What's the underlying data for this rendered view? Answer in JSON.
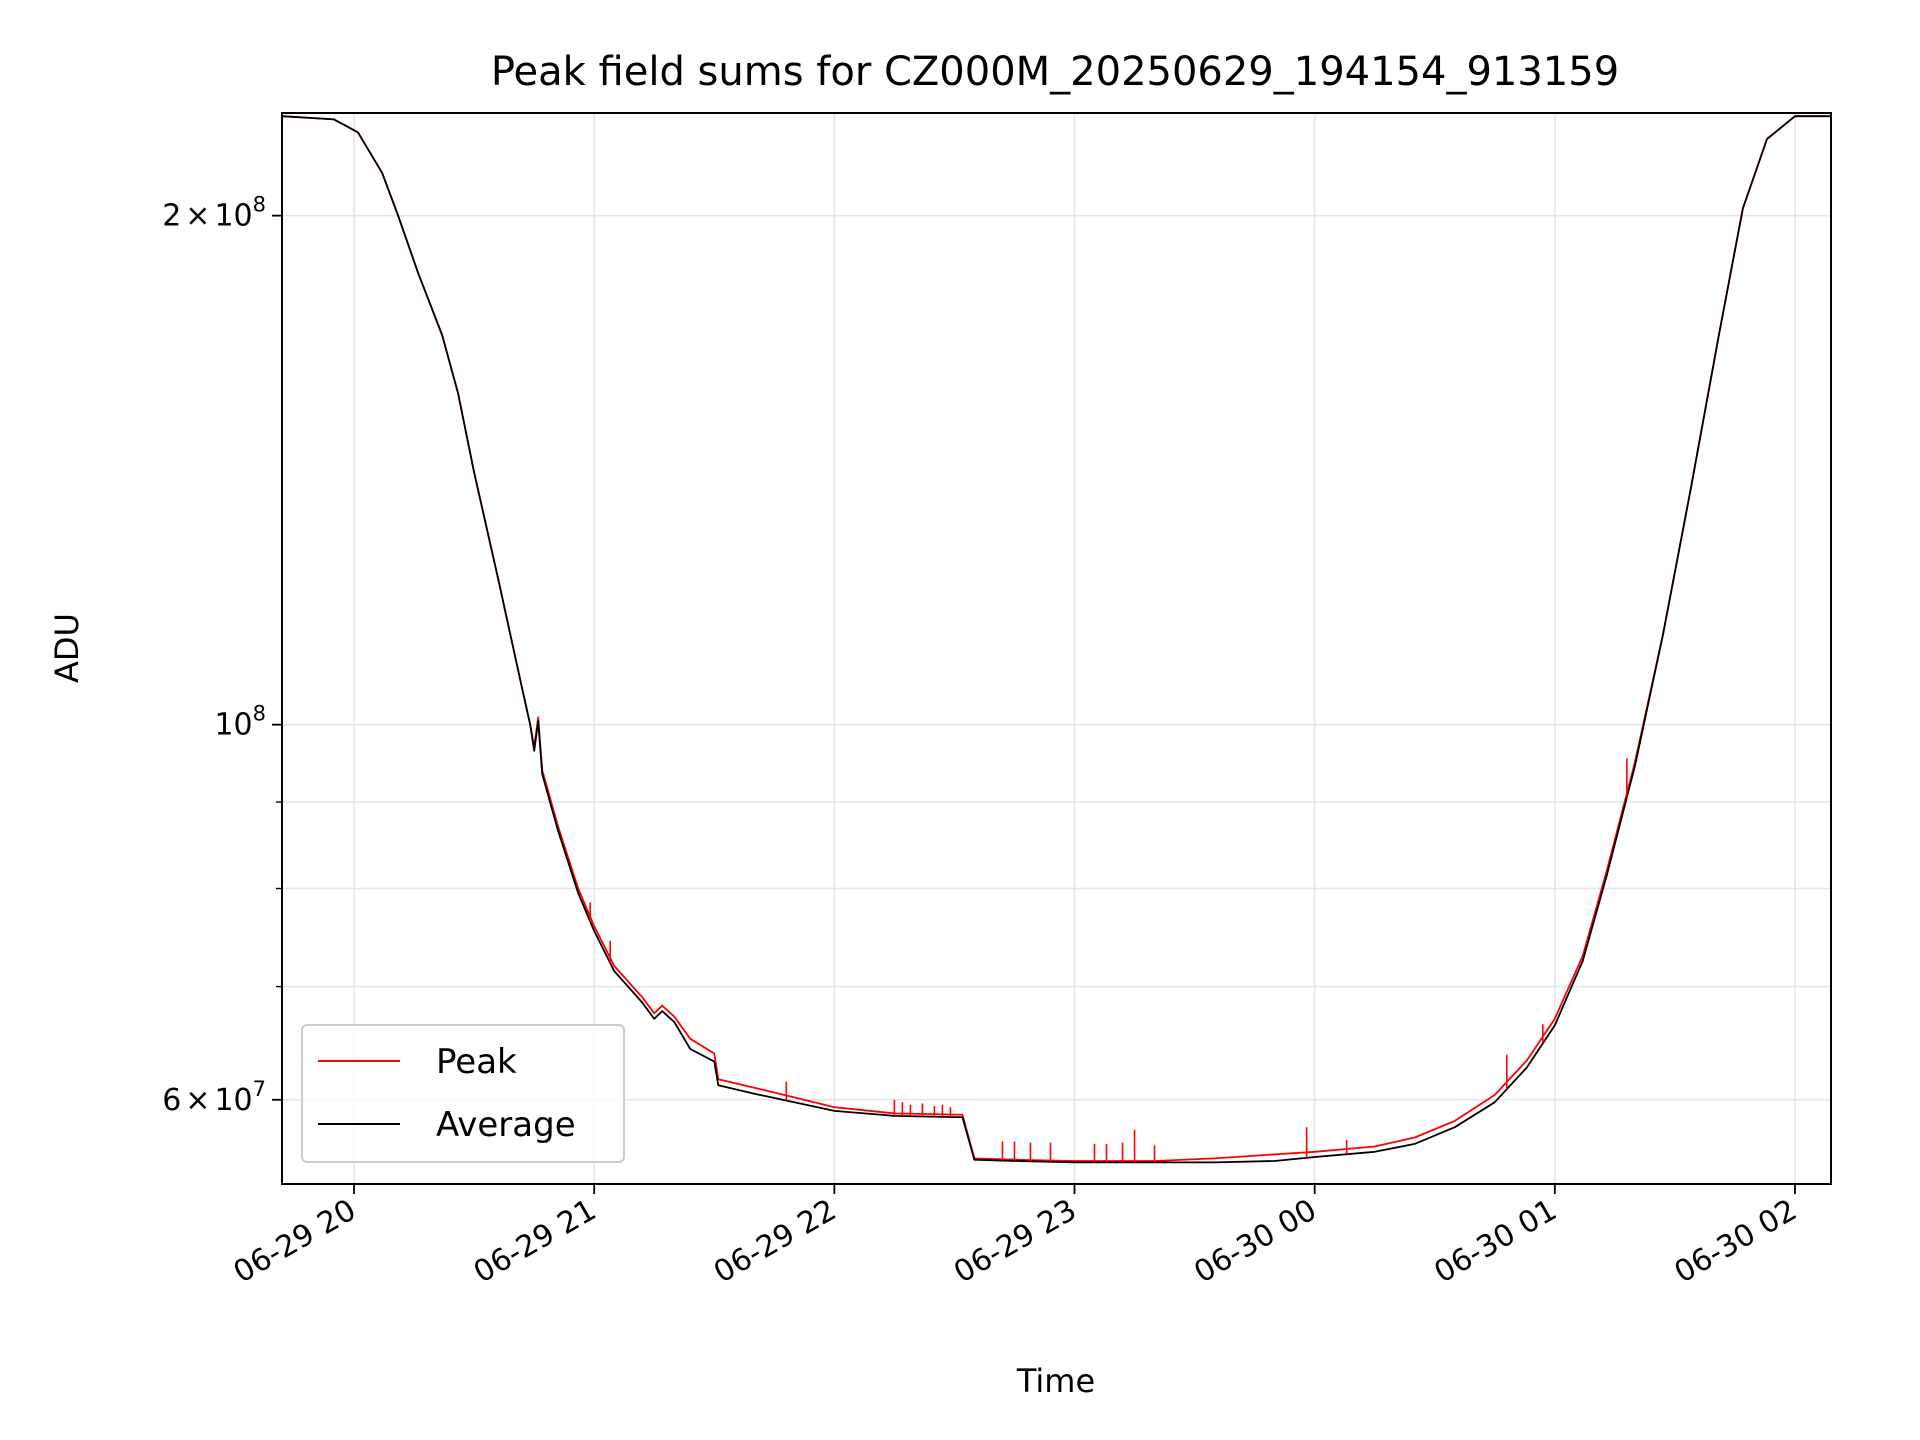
{
  "chart_data": {
    "type": "line",
    "title": "Peak field sums for CZ000M_20250629_194154_913159",
    "xlabel": "Time",
    "ylabel": "ADU",
    "yscale": "log",
    "xlim": [
      "2025-06-29 19:42",
      "2025-06-30 02:09"
    ],
    "ylim": [
      53500000,
      230000000
    ],
    "grid": true,
    "legend_position": "lower-left",
    "x_ticks": [
      {
        "value": "2025-06-29 20:00",
        "label": "06-29 20"
      },
      {
        "value": "2025-06-29 21:00",
        "label": "06-29 21"
      },
      {
        "value": "2025-06-29 22:00",
        "label": "06-29 22"
      },
      {
        "value": "2025-06-29 23:00",
        "label": "06-29 23"
      },
      {
        "value": "2025-06-30 00:00",
        "label": "06-30 00"
      },
      {
        "value": "2025-06-30 01:00",
        "label": "06-30 01"
      },
      {
        "value": "2025-06-30 02:00",
        "label": "06-30 02"
      }
    ],
    "y_major_ticks": [
      {
        "value": 60000000,
        "mant": "6",
        "exp": "7"
      },
      {
        "value": 100000000,
        "mant": "",
        "exp": "8"
      },
      {
        "value": 200000000,
        "mant": "2",
        "exp": "8"
      }
    ],
    "y_minor_ticks": [
      70000000,
      80000000,
      90000000
    ],
    "series": [
      {
        "name": "Peak",
        "color": "#ff0000",
        "points": [
          [
            "2025-06-29 19:42",
            229000000
          ],
          [
            "2025-06-29 19:55",
            228000000
          ],
          [
            "2025-06-29 20:01",
            224000000
          ],
          [
            "2025-06-29 20:07",
            212000000
          ],
          [
            "2025-06-29 20:11",
            200000000
          ],
          [
            "2025-06-29 20:16",
            185000000
          ],
          [
            "2025-06-29 20:22",
            170000000
          ],
          [
            "2025-06-29 20:26",
            157000000
          ],
          [
            "2025-06-29 20:30",
            141000000
          ],
          [
            "2025-06-29 20:36",
            122000000
          ],
          [
            "2025-06-29 20:42",
            105000000
          ],
          [
            "2025-06-29 20:44",
            100000000
          ],
          [
            "2025-06-29 20:45",
            97000000
          ],
          [
            "2025-06-29 20:46",
            101000000
          ],
          [
            "2025-06-29 20:47",
            94000000
          ],
          [
            "2025-06-29 20:51",
            87000000
          ],
          [
            "2025-06-29 20:56",
            80000000
          ],
          [
            "2025-06-29 21:00",
            76000000
          ],
          [
            "2025-06-29 21:05",
            72000000
          ],
          [
            "2025-06-29 21:12",
            69000000
          ],
          [
            "2025-06-29 21:15",
            67500000
          ],
          [
            "2025-06-29 21:17",
            68200000
          ],
          [
            "2025-06-29 21:20",
            67200000
          ],
          [
            "2025-06-29 21:24",
            65200000
          ],
          [
            "2025-06-29 21:30",
            63900000
          ],
          [
            "2025-06-29 21:31",
            61700000
          ],
          [
            "2025-06-29 21:40",
            61000000
          ],
          [
            "2025-06-29 21:50",
            60200000
          ],
          [
            "2025-06-29 22:00",
            59400000
          ],
          [
            "2025-06-29 22:15",
            58900000
          ],
          [
            "2025-06-29 22:30",
            58800000
          ],
          [
            "2025-06-29 22:32",
            58800000
          ],
          [
            "2025-06-29 22:35",
            55400000
          ],
          [
            "2025-06-29 22:45",
            55300000
          ],
          [
            "2025-06-29 23:00",
            55200000
          ],
          [
            "2025-06-29 23:20",
            55200000
          ],
          [
            "2025-06-29 23:35",
            55400000
          ],
          [
            "2025-06-29 23:50",
            55700000
          ],
          [
            "2025-06-30 00:00",
            55900000
          ],
          [
            "2025-06-30 00:15",
            56300000
          ],
          [
            "2025-06-30 00:25",
            57000000
          ],
          [
            "2025-06-30 00:35",
            58300000
          ],
          [
            "2025-06-30 00:45",
            60400000
          ],
          [
            "2025-06-30 00:53",
            63300000
          ],
          [
            "2025-06-30 01:00",
            67000000
          ],
          [
            "2025-06-30 01:07",
            73000000
          ],
          [
            "2025-06-30 01:13",
            82000000
          ],
          [
            "2025-06-30 01:20",
            95000000
          ],
          [
            "2025-06-30 01:27",
            113000000
          ],
          [
            "2025-06-30 01:34",
            138000000
          ],
          [
            "2025-06-30 01:41",
            170000000
          ],
          [
            "2025-06-30 01:47",
            202000000
          ],
          [
            "2025-06-30 01:53",
            222000000
          ],
          [
            "2025-06-30 02:00",
            229000000
          ],
          [
            "2025-06-30 02:09",
            229000000
          ]
        ]
      },
      {
        "name": "Average",
        "color": "#000000",
        "points": [
          [
            "2025-06-29 19:42",
            229000000
          ],
          [
            "2025-06-29 19:55",
            228000000
          ],
          [
            "2025-06-29 20:01",
            224000000
          ],
          [
            "2025-06-29 20:07",
            212000000
          ],
          [
            "2025-06-29 20:11",
            200000000
          ],
          [
            "2025-06-29 20:16",
            185000000
          ],
          [
            "2025-06-29 20:22",
            170000000
          ],
          [
            "2025-06-29 20:26",
            157000000
          ],
          [
            "2025-06-29 20:30",
            141000000
          ],
          [
            "2025-06-29 20:36",
            122000000
          ],
          [
            "2025-06-29 20:42",
            105000000
          ],
          [
            "2025-06-29 20:44",
            100000000
          ],
          [
            "2025-06-29 20:45",
            96500000
          ],
          [
            "2025-06-29 20:46",
            100500000
          ],
          [
            "2025-06-29 20:47",
            93500000
          ],
          [
            "2025-06-29 20:51",
            86500000
          ],
          [
            "2025-06-29 20:56",
            79500000
          ],
          [
            "2025-06-29 21:00",
            75500000
          ],
          [
            "2025-06-29 21:05",
            71500000
          ],
          [
            "2025-06-29 21:12",
            68500000
          ],
          [
            "2025-06-29 21:15",
            67000000
          ],
          [
            "2025-06-29 21:17",
            67700000
          ],
          [
            "2025-06-29 21:20",
            66700000
          ],
          [
            "2025-06-29 21:24",
            64300000
          ],
          [
            "2025-06-29 21:30",
            63200000
          ],
          [
            "2025-06-29 21:31",
            61200000
          ],
          [
            "2025-06-29 21:40",
            60500000
          ],
          [
            "2025-06-29 21:50",
            59800000
          ],
          [
            "2025-06-29 22:00",
            59100000
          ],
          [
            "2025-06-29 22:15",
            58700000
          ],
          [
            "2025-06-29 22:30",
            58600000
          ],
          [
            "2025-06-29 22:32",
            58600000
          ],
          [
            "2025-06-29 22:35",
            55300000
          ],
          [
            "2025-06-29 22:45",
            55200000
          ],
          [
            "2025-06-29 23:00",
            55100000
          ],
          [
            "2025-06-29 23:20",
            55100000
          ],
          [
            "2025-06-29 23:35",
            55100000
          ],
          [
            "2025-06-29 23:50",
            55200000
          ],
          [
            "2025-06-30 00:00",
            55500000
          ],
          [
            "2025-06-30 00:15",
            55900000
          ],
          [
            "2025-06-30 00:25",
            56500000
          ],
          [
            "2025-06-30 00:35",
            57800000
          ],
          [
            "2025-06-30 00:45",
            59800000
          ],
          [
            "2025-06-30 00:53",
            62700000
          ],
          [
            "2025-06-30 01:00",
            66400000
          ],
          [
            "2025-06-30 01:07",
            72500000
          ],
          [
            "2025-06-30 01:13",
            81500000
          ],
          [
            "2025-06-30 01:20",
            94500000
          ],
          [
            "2025-06-30 01:27",
            113000000
          ],
          [
            "2025-06-30 01:34",
            138000000
          ],
          [
            "2025-06-30 01:41",
            170000000
          ],
          [
            "2025-06-30 01:47",
            202000000
          ],
          [
            "2025-06-30 01:53",
            222000000
          ],
          [
            "2025-06-30 02:00",
            229000000
          ],
          [
            "2025-06-30 02:09",
            229000000
          ]
        ]
      }
    ],
    "peak_spikes": [
      [
        "2025-06-29 20:59",
        78500000
      ],
      [
        "2025-06-29 21:04",
        74500000
      ],
      [
        "2025-06-29 21:48",
        61500000
      ],
      [
        "2025-06-29 22:15",
        60000000
      ],
      [
        "2025-06-29 22:17",
        59800000
      ],
      [
        "2025-06-29 22:19",
        59600000
      ],
      [
        "2025-06-29 22:22",
        59700000
      ],
      [
        "2025-06-29 22:25",
        59500000
      ],
      [
        "2025-06-29 22:27",
        59600000
      ],
      [
        "2025-06-29 22:29",
        59400000
      ],
      [
        "2025-06-29 22:42",
        56700000
      ],
      [
        "2025-06-29 22:45",
        56700000
      ],
      [
        "2025-06-29 22:49",
        56600000
      ],
      [
        "2025-06-29 22:54",
        56600000
      ],
      [
        "2025-06-29 23:05",
        56500000
      ],
      [
        "2025-06-29 23:08",
        56500000
      ],
      [
        "2025-06-29 23:12",
        56600000
      ],
      [
        "2025-06-29 23:15",
        57600000
      ],
      [
        "2025-06-29 23:20",
        56400000
      ],
      [
        "2025-06-29 23:58",
        57800000
      ],
      [
        "2025-06-30 00:08",
        56800000
      ],
      [
        "2025-06-30 00:48",
        63800000
      ],
      [
        "2025-06-30 00:57",
        66500000
      ],
      [
        "2025-06-30 01:18",
        95500000
      ]
    ]
  }
}
